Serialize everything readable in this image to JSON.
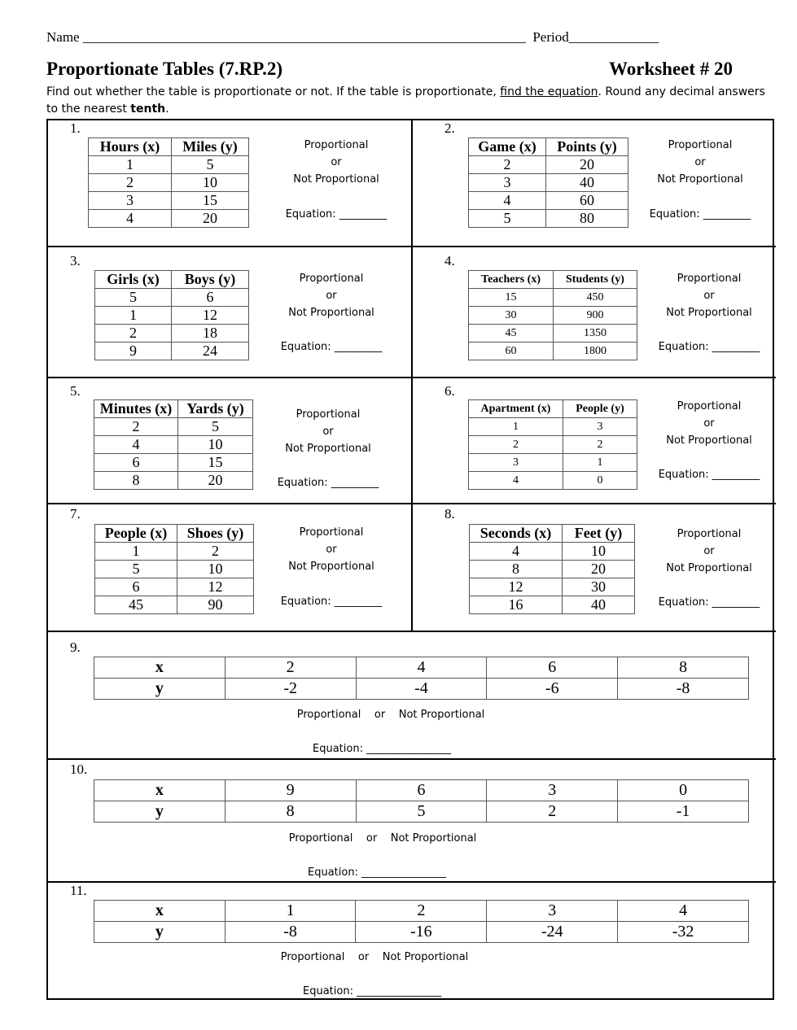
{
  "header": {
    "name_label": "Name",
    "name_blank": "________________________________________________________________",
    "period_label": "Period",
    "period_blank": "_____________",
    "title": "Proportionate Tables (7.RP.2)",
    "worksheet": "Worksheet # 20"
  },
  "instructions": {
    "part1": "Find out whether the table is proportionate or not. If the table is proportionate, ",
    "link": "find the equation",
    "part2": ".  Round any decimal answers to the nearest ",
    "bold": "tenth",
    "part3": "."
  },
  "choices": {
    "proportional": "Proportional",
    "or": "or",
    "not_proportional": "Not Proportional",
    "equation": "Equation:",
    "blank": "_________",
    "blank_long": "________________"
  },
  "problems": [
    {
      "number": "1.",
      "headers": [
        "Hours (x)",
        "Miles (y)"
      ],
      "rows": [
        [
          "1",
          "5"
        ],
        [
          "2",
          "10"
        ],
        [
          "3",
          "15"
        ],
        [
          "4",
          "20"
        ]
      ]
    },
    {
      "number": "2.",
      "headers": [
        "Game (x)",
        "Points (y)"
      ],
      "rows": [
        [
          "2",
          "20"
        ],
        [
          "3",
          "40"
        ],
        [
          "4",
          "60"
        ],
        [
          "5",
          "80"
        ]
      ]
    },
    {
      "number": "3.",
      "headers": [
        "Girls (x)",
        "Boys (y)"
      ],
      "rows": [
        [
          "5",
          "6"
        ],
        [
          "1",
          "12"
        ],
        [
          "2",
          "18"
        ],
        [
          "9",
          "24"
        ]
      ]
    },
    {
      "number": "4.",
      "headers": [
        "Teachers (x)",
        "Students (y)"
      ],
      "rows": [
        [
          "15",
          "450"
        ],
        [
          "30",
          "900"
        ],
        [
          "45",
          "1350"
        ],
        [
          "60",
          "1800"
        ]
      ]
    },
    {
      "number": "5.",
      "headers": [
        "Minutes (x)",
        "Yards (y)"
      ],
      "rows": [
        [
          "2",
          "5"
        ],
        [
          "4",
          "10"
        ],
        [
          "6",
          "15"
        ],
        [
          "8",
          "20"
        ]
      ]
    },
    {
      "number": "6.",
      "headers": [
        "Apartment (x)",
        "People (y)"
      ],
      "rows": [
        [
          "1",
          "3"
        ],
        [
          "2",
          "2"
        ],
        [
          "3",
          "1"
        ],
        [
          "4",
          "0"
        ]
      ]
    },
    {
      "number": "7.",
      "headers": [
        "People (x)",
        "Shoes (y)"
      ],
      "rows": [
        [
          "1",
          "2"
        ],
        [
          "5",
          "10"
        ],
        [
          "6",
          "12"
        ],
        [
          "45",
          "90"
        ]
      ]
    },
    {
      "number": "8.",
      "headers": [
        "Seconds (x)",
        "Feet (y)"
      ],
      "rows": [
        [
          "4",
          "10"
        ],
        [
          "8",
          "20"
        ],
        [
          "12",
          "30"
        ],
        [
          "16",
          "40"
        ]
      ]
    },
    {
      "number": "9.",
      "x_label": "x",
      "y_label": "y",
      "x": [
        "2",
        "4",
        "6",
        "8"
      ],
      "y": [
        "-2",
        "-4",
        "-6",
        "-8"
      ]
    },
    {
      "number": "10.",
      "x_label": "x",
      "y_label": "y",
      "x": [
        "9",
        "6",
        "3",
        "0"
      ],
      "y": [
        "8",
        "5",
        "2",
        "-1"
      ]
    },
    {
      "number": "11.",
      "x_label": "x",
      "y_label": "y",
      "x": [
        "1",
        "2",
        "3",
        "4"
      ],
      "y": [
        "-8",
        "-16",
        "-24",
        "-32"
      ]
    }
  ]
}
